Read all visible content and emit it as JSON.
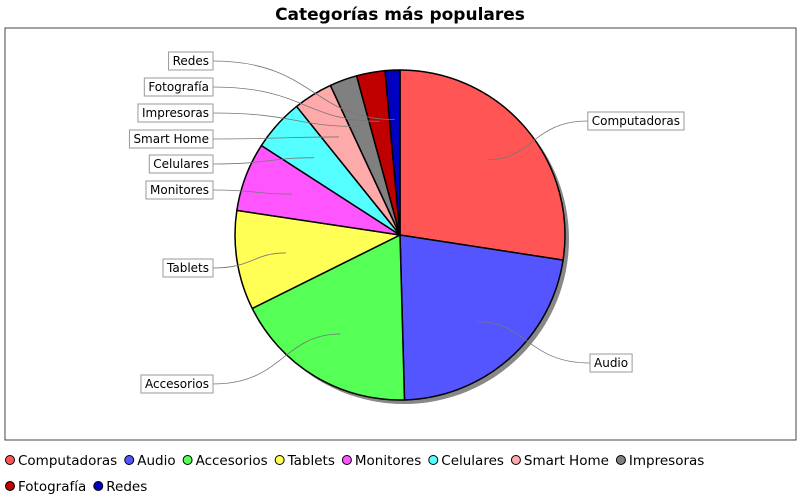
{
  "chart_data": {
    "type": "pie",
    "title": "Categorías más populares",
    "legend_position": "bottom",
    "categories": [
      "Computadoras",
      "Audio",
      "Accesorios",
      "Tablets",
      "Monitores",
      "Celulares",
      "Smart Home",
      "Impresoras",
      "Fotografía",
      "Redes"
    ],
    "values": [
      28.5,
      23.0,
      18.8,
      10.1,
      7.0,
      5.3,
      4.0,
      2.8,
      2.9,
      1.5
    ],
    "colors": [
      "#ff5555",
      "#5555ff",
      "#55ff55",
      "#ffff55",
      "#ff55ff",
      "#55ffff",
      "#ffaaaa",
      "#808080",
      "#c00000",
      "#0000c0"
    ]
  }
}
